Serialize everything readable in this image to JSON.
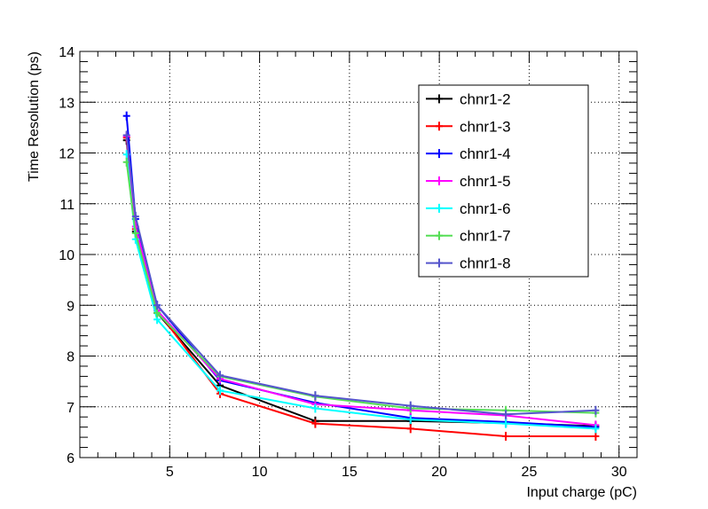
{
  "chart_data": {
    "type": "line",
    "xlabel": "Input charge (pC)",
    "ylabel": "Time Resolution (ps)",
    "xlim": [
      0,
      31
    ],
    "ylim": [
      6,
      14
    ],
    "xticks": [
      5,
      10,
      15,
      20,
      25,
      30
    ],
    "yticks": [
      6,
      7,
      8,
      9,
      10,
      11,
      12,
      13,
      14
    ],
    "grid": true,
    "legend_position": "top-right",
    "series": [
      {
        "name": "chnr1-2",
        "color": "#000000",
        "x": [
          2.6,
          3.1,
          4.3,
          7.8,
          13.1,
          18.4,
          23.7,
          28.7
        ],
        "y": [
          12.25,
          10.45,
          8.85,
          7.42,
          6.72,
          6.72,
          6.68,
          6.62
        ]
      },
      {
        "name": "chnr1-3",
        "color": "#ff0000",
        "x": [
          2.6,
          3.1,
          4.3,
          7.8,
          13.1,
          18.4,
          23.7,
          28.7
        ],
        "y": [
          12.3,
          10.5,
          8.9,
          7.26,
          6.67,
          6.57,
          6.42,
          6.42
        ]
      },
      {
        "name": "chnr1-4",
        "color": "#0000ff",
        "x": [
          2.6,
          3.1,
          4.3,
          7.8,
          13.1,
          18.4,
          23.7,
          28.7
        ],
        "y": [
          12.73,
          10.7,
          9.0,
          7.52,
          7.08,
          6.78,
          6.7,
          6.6
        ]
      },
      {
        "name": "chnr1-5",
        "color": "#ff00ff",
        "x": [
          2.6,
          3.1,
          4.3,
          7.8,
          13.1,
          18.4,
          23.7,
          28.7
        ],
        "y": [
          12.33,
          10.55,
          8.9,
          7.55,
          7.05,
          6.93,
          6.83,
          6.64
        ]
      },
      {
        "name": "chnr1-6",
        "color": "#00ffff",
        "x": [
          2.6,
          3.1,
          4.3,
          7.8,
          13.1,
          18.4,
          23.7,
          28.7
        ],
        "y": [
          11.97,
          10.3,
          8.72,
          7.32,
          6.97,
          6.75,
          6.67,
          6.57
        ]
      },
      {
        "name": "chnr1-7",
        "color": "#55dd55",
        "x": [
          2.6,
          3.1,
          4.3,
          7.8,
          13.1,
          18.4,
          23.7,
          28.7
        ],
        "y": [
          11.82,
          10.42,
          8.85,
          7.6,
          7.2,
          6.97,
          6.93,
          6.88
        ]
      },
      {
        "name": "chnr1-8",
        "color": "#5555cc",
        "x": [
          2.6,
          3.1,
          4.3,
          7.8,
          13.1,
          18.4,
          23.7,
          28.7
        ],
        "y": [
          12.35,
          10.75,
          9.0,
          7.62,
          7.22,
          7.02,
          6.85,
          6.93
        ]
      }
    ]
  }
}
